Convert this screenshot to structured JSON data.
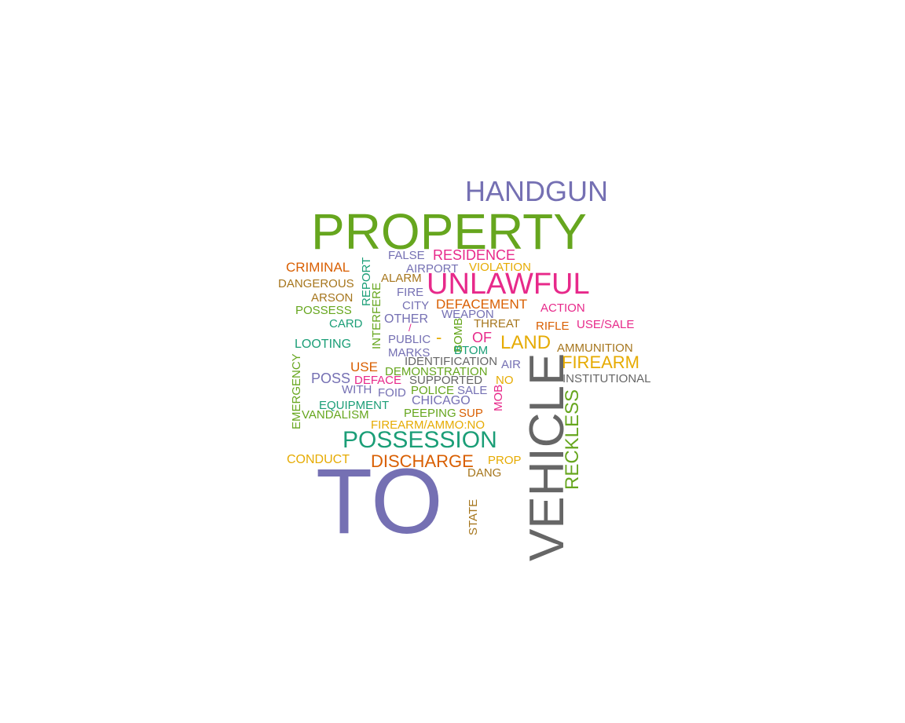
{
  "word_cloud": {
    "palette": {
      "green": "#66a61e",
      "purple": "#7570b3",
      "magenta": "#e7298a",
      "orange": "#d95f02",
      "gold": "#e6ab02",
      "olive": "#a6761d",
      "teal": "#1b9e77",
      "gray": "#666666"
    },
    "words": [
      {
        "text": "HANDGUN",
        "color": "#7570b3",
        "rotated": false
      },
      {
        "text": "PROPERTY",
        "color": "#66a61e",
        "rotated": false
      },
      {
        "text": "FALSE",
        "color": "#7570b3",
        "rotated": false
      },
      {
        "text": "RESIDENCE",
        "color": "#e7298a",
        "rotated": false
      },
      {
        "text": "CRIMINAL",
        "color": "#d95f02",
        "rotated": false
      },
      {
        "text": "REPORT",
        "color": "#1b9e77",
        "rotated": true
      },
      {
        "text": "AIRPORT",
        "color": "#7570b3",
        "rotated": false
      },
      {
        "text": "VIOLATION",
        "color": "#e6ab02",
        "rotated": false
      },
      {
        "text": "DANGEROUS",
        "color": "#a6761d",
        "rotated": false
      },
      {
        "text": "ALARM",
        "color": "#a6761d",
        "rotated": false
      },
      {
        "text": "UNLAWFUL",
        "color": "#e7298a",
        "rotated": false
      },
      {
        "text": "FIRE",
        "color": "#7570b3",
        "rotated": false
      },
      {
        "text": "ARSON",
        "color": "#a6761d",
        "rotated": false
      },
      {
        "text": "INTERFERE",
        "color": "#66a61e",
        "rotated": true
      },
      {
        "text": "CITY",
        "color": "#7570b3",
        "rotated": false
      },
      {
        "text": "DEFACEMENT",
        "color": "#d95f02",
        "rotated": false
      },
      {
        "text": "ACTION",
        "color": "#e7298a",
        "rotated": false
      },
      {
        "text": "POSSESS",
        "color": "#66a61e",
        "rotated": false
      },
      {
        "text": "WEAPON",
        "color": "#7570b3",
        "rotated": false
      },
      {
        "text": "OTHER",
        "color": "#7570b3",
        "rotated": false
      },
      {
        "text": "CARD",
        "color": "#1b9e77",
        "rotated": false
      },
      {
        "text": "THREAT",
        "color": "#a6761d",
        "rotated": false
      },
      {
        "text": "RIFLE",
        "color": "#d95f02",
        "rotated": false
      },
      {
        "text": "USE/SALE",
        "color": "#e7298a",
        "rotated": false
      },
      {
        "text": "/",
        "color": "#e7298a",
        "rotated": false
      },
      {
        "text": "BOMB",
        "color": "#66a61e",
        "rotated": true
      },
      {
        "text": "-",
        "color": "#e6ab02",
        "rotated": false
      },
      {
        "text": "OF",
        "color": "#e7298a",
        "rotated": false
      },
      {
        "text": "PUBLIC",
        "color": "#7570b3",
        "rotated": false
      },
      {
        "text": "LOOTING",
        "color": "#1b9e77",
        "rotated": false
      },
      {
        "text": "LAND",
        "color": "#e6ab02",
        "rotated": false
      },
      {
        "text": "AMMUNITION",
        "color": "#a6761d",
        "rotated": false
      },
      {
        "text": "BTOM",
        "color": "#1b9e77",
        "rotated": false
      },
      {
        "text": "MARKS",
        "color": "#7570b3",
        "rotated": false
      },
      {
        "text": "IDENTIFICATION",
        "color": "#666666",
        "rotated": false
      },
      {
        "text": "FIREARM",
        "color": "#e6ab02",
        "rotated": false
      },
      {
        "text": "AIR",
        "color": "#7570b3",
        "rotated": false
      },
      {
        "text": "USE",
        "color": "#d95f02",
        "rotated": false
      },
      {
        "text": "DEMONSTRATION",
        "color": "#66a61e",
        "rotated": false
      },
      {
        "text": "EMERGENCY",
        "color": "#66a61e",
        "rotated": true
      },
      {
        "text": "INSTITUTIONAL",
        "color": "#666666",
        "rotated": false
      },
      {
        "text": "POSS",
        "color": "#7570b3",
        "rotated": false
      },
      {
        "text": "DEFACE",
        "color": "#e7298a",
        "rotated": false
      },
      {
        "text": "SUPPORTED",
        "color": "#666666",
        "rotated": false
      },
      {
        "text": "NO",
        "color": "#e6ab02",
        "rotated": false
      },
      {
        "text": "WITH",
        "color": "#7570b3",
        "rotated": false
      },
      {
        "text": "FOID",
        "color": "#7570b3",
        "rotated": false
      },
      {
        "text": "POLICE",
        "color": "#66a61e",
        "rotated": false
      },
      {
        "text": "SALE",
        "color": "#7570b3",
        "rotated": false
      },
      {
        "text": "VEHICLE",
        "color": "#666666",
        "rotated": true
      },
      {
        "text": "RECKLESS",
        "color": "#66a61e",
        "rotated": true
      },
      {
        "text": "MOB",
        "color": "#e7298a",
        "rotated": true
      },
      {
        "text": "CHICAGO",
        "color": "#7570b3",
        "rotated": false
      },
      {
        "text": "EQUIPMENT",
        "color": "#1b9e77",
        "rotated": false
      },
      {
        "text": "VANDALISM",
        "color": "#66a61e",
        "rotated": false
      },
      {
        "text": "PEEPING",
        "color": "#66a61e",
        "rotated": false
      },
      {
        "text": "SUP",
        "color": "#d95f02",
        "rotated": false
      },
      {
        "text": "FIREARM/AMMO:NO",
        "color": "#e6ab02",
        "rotated": false
      },
      {
        "text": "POSSESSION",
        "color": "#1b9e77",
        "rotated": false
      },
      {
        "text": "CONDUCT",
        "color": "#e6ab02",
        "rotated": false
      },
      {
        "text": "DISCHARGE",
        "color": "#d95f02",
        "rotated": false
      },
      {
        "text": "PROP",
        "color": "#e6ab02",
        "rotated": false
      },
      {
        "text": "DANG",
        "color": "#a6761d",
        "rotated": false
      },
      {
        "text": "TO",
        "color": "#7570b3",
        "rotated": false
      },
      {
        "text": "STATE",
        "color": "#a6761d",
        "rotated": true
      }
    ]
  }
}
